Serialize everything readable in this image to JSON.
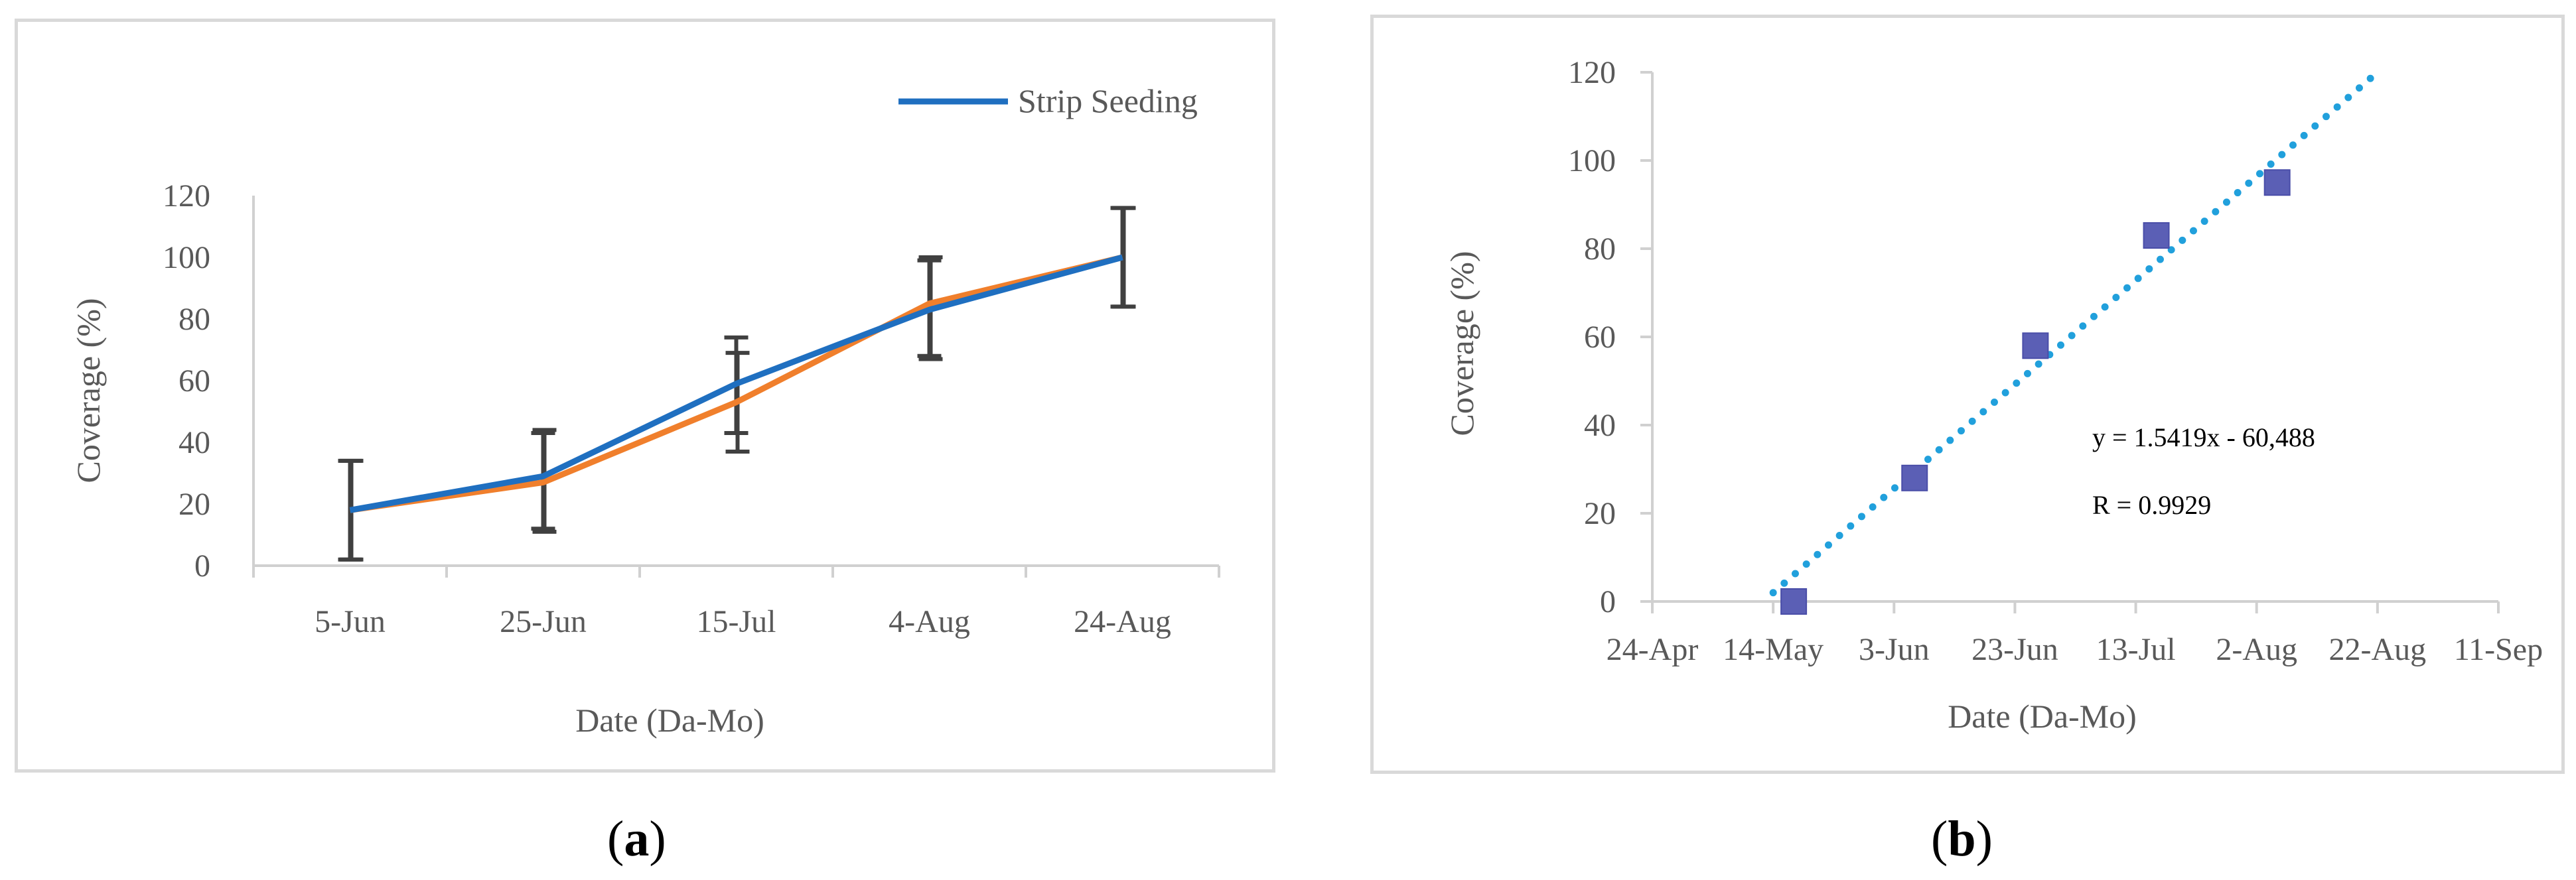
{
  "chart_data": [
    {
      "id": "a",
      "type": "line",
      "title": "",
      "xlabel": "Date (Da-Mo)",
      "ylabel": "Coverage (%)",
      "categories": [
        "5-Jun",
        "25-Jun",
        "15-Jul",
        "4-Aug",
        "24-Aug"
      ],
      "ylim": [
        0,
        120
      ],
      "yticks": [
        0,
        20,
        40,
        60,
        80,
        100,
        120
      ],
      "grid": false,
      "legend_position": "top-right",
      "series": [
        {
          "name": "Strip Seeding",
          "color": "#1f6fc0",
          "values": [
            18,
            29,
            59,
            83,
            100
          ],
          "error_low": [
            2,
            12,
            43,
            68,
            84
          ],
          "error_high": [
            34,
            43,
            74,
            99,
            116
          ]
        },
        {
          "name": "",
          "color": "#f07f2c",
          "values": [
            18,
            27,
            53,
            85,
            100
          ],
          "error_low": [
            2,
            11,
            37,
            67,
            84
          ],
          "error_high": [
            34,
            44,
            69,
            100,
            116
          ]
        }
      ],
      "error_bar_color": "#404040"
    },
    {
      "id": "b",
      "type": "scatter",
      "title": "",
      "xlabel": "Date (Da-Mo)",
      "ylabel": "Coverage (%)",
      "xticks": [
        "24-Apr",
        "14-May",
        "3-Jun",
        "23-Jun",
        "13-Jul",
        "2-Aug",
        "22-Aug",
        "11-Sep"
      ],
      "x_tick_index": [
        0,
        1,
        2,
        3,
        4,
        5,
        6,
        7
      ],
      "xlim": [
        0,
        7
      ],
      "ylim": [
        0,
        120
      ],
      "yticks": [
        0,
        20,
        40,
        60,
        80,
        100,
        120
      ],
      "grid": false,
      "marker_color": "#5b5fb5",
      "trendline_color": "#21a0dc",
      "points": [
        {
          "x": 1.17,
          "y": 0
        },
        {
          "x": 2.17,
          "y": 28
        },
        {
          "x": 3.17,
          "y": 58
        },
        {
          "x": 4.17,
          "y": 83
        },
        {
          "x": 5.17,
          "y": 95
        }
      ],
      "trendline": {
        "x_start": 1.0,
        "y_start": 2,
        "x_end": 6.0,
        "y_end": 120
      },
      "annotations": [
        "y = 1.5419x - 60,488",
        "R = 0.9929"
      ]
    }
  ],
  "captions": {
    "a": "a",
    "b": "b"
  }
}
